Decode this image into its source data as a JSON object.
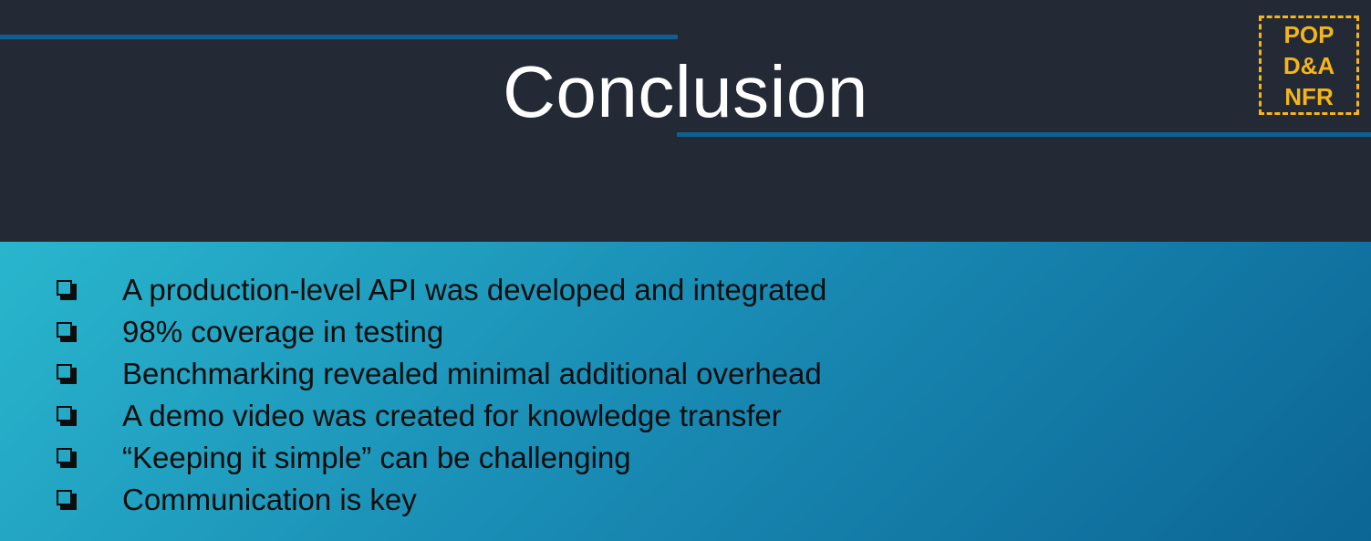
{
  "slide": {
    "title": "Conclusion",
    "tag": [
      "POP",
      "D&A",
      "NFR"
    ],
    "bullets": [
      "A production-level API was developed and integrated",
      "98% coverage in testing",
      "Benchmarking revealed minimal additional overhead",
      "A demo video was created for knowledge transfer",
      "“Keeping it simple” can be challenging",
      "Communication is key"
    ],
    "bullet_icon": "checkbox-icon"
  },
  "colors": {
    "header_bg": "#232a36",
    "accent_rule": "#0e5f92",
    "title_text": "#ffffff",
    "tag_color": "#f5b41a",
    "content_gradient_start": "#29b6cd",
    "content_gradient_end": "#0c6595",
    "bullet_text": "#0d0d0d"
  }
}
